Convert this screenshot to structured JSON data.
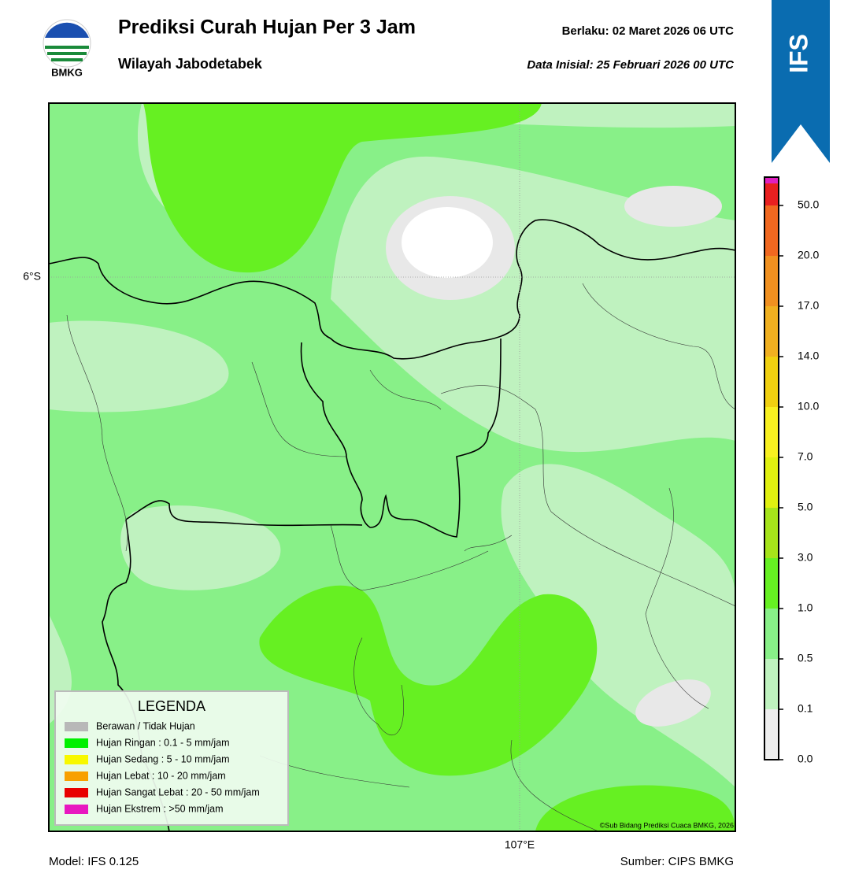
{
  "header": {
    "logo_text": "BMKG",
    "title": "Prediksi Curah Hujan Per 3 Jam",
    "subtitle": "Wilayah Jabodetabek",
    "valid": "Berlaku:  02 Maret 2026 06 UTC",
    "initial": "Data Inisial:  25 Februari 2026 00 UTC",
    "badge": "IFS"
  },
  "map": {
    "lat_label": "6°S",
    "lon_label": "107°E",
    "credit": "©Sub Bidang Prediksi Cuaca BMKG, 2026"
  },
  "legend": {
    "title": "LEGENDA",
    "items": [
      {
        "label": "Berawan / Tidak Hujan",
        "color": "#b8b8b8"
      },
      {
        "label": "Hujan Ringan : 0.1 - 5 mm/jam",
        "color": "#00f000"
      },
      {
        "label": "Hujan Sedang : 5 - 10 mm/jam",
        "color": "#f8f800"
      },
      {
        "label": "Hujan Lebat : 10 - 20 mm/jam",
        "color": "#f8a000"
      },
      {
        "label": "Hujan Sangat Lebat : 20 - 50 mm/jam",
        "color": "#e80000"
      },
      {
        "label": "Hujan Ekstrem : >50 mm/jam",
        "color": "#e818c0"
      }
    ]
  },
  "colorbar": {
    "ticks": [
      "0.0",
      "0.1",
      "0.5",
      "1.0",
      "3.0",
      "5.0",
      "7.0",
      "10.0",
      "14.0",
      "17.0",
      "20.0",
      "50.0"
    ],
    "colors": [
      "#eeeeee",
      "#bff2bf",
      "#88f088",
      "#66f022",
      "#a6e41a",
      "#e0f010",
      "#f8f020",
      "#f0d010",
      "#f0b020",
      "#f09020",
      "#f06820",
      "#e82020",
      "#e020c0"
    ]
  },
  "footer": {
    "model": "Model: IFS 0.125",
    "source": "Sumber: CIPS BMKG"
  }
}
